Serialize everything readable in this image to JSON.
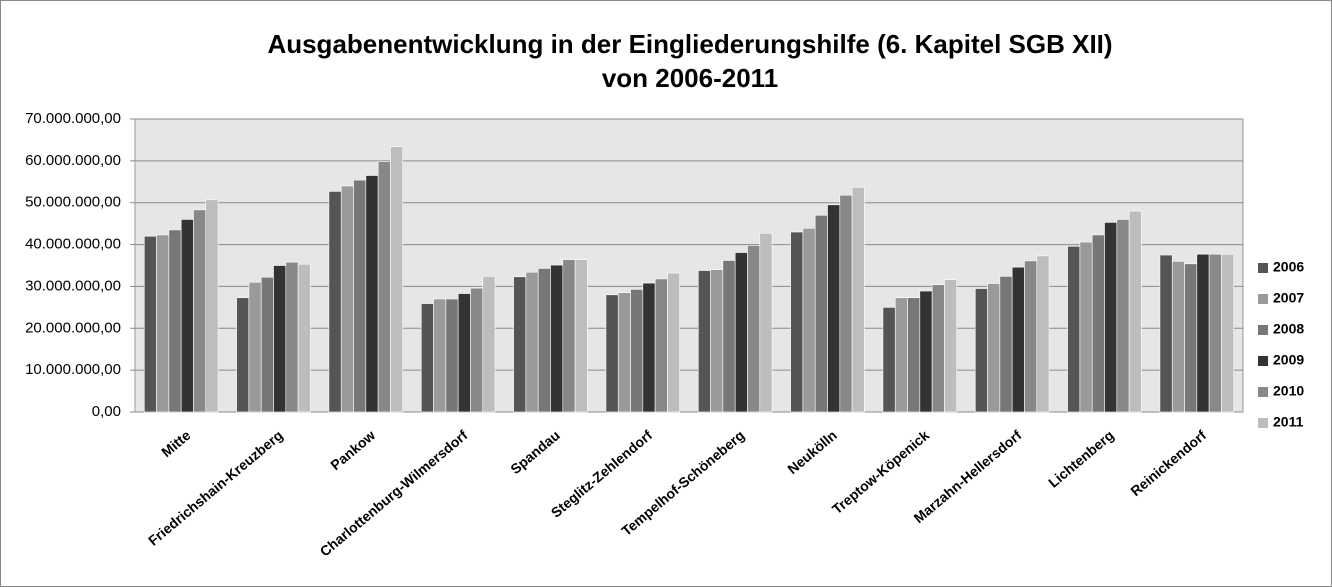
{
  "chart_data": {
    "type": "bar",
    "title": [
      "Ausgabenentwicklung in der Eingliederungshilfe (6. Kapitel SGB XII)",
      "von 2006-2011"
    ],
    "categories": [
      "Mitte",
      "Friedrichshain-Kreuzberg",
      "Pankow",
      "Charlottenburg-Wilmersdorf",
      "Spandau",
      "Steglitz-Zehlendorf",
      "Tempelhof-Schöneberg",
      "Neukölln",
      "Treptow-Köpenick",
      "Marzahn-Hellersdorf",
      "Lichtenberg",
      "Reinickendorf"
    ],
    "series": [
      {
        "name": "2006",
        "color": "#555555",
        "values": [
          42000000,
          27300000,
          52700000,
          25900000,
          32300000,
          28000000,
          33800000,
          43000000,
          25000000,
          29500000,
          39600000,
          37500000
        ]
      },
      {
        "name": "2007",
        "color": "#9a9a9a",
        "values": [
          42300000,
          31000000,
          54000000,
          27000000,
          33400000,
          28500000,
          34000000,
          43900000,
          27300000,
          30700000,
          40600000,
          36000000
        ]
      },
      {
        "name": "2008",
        "color": "#777777",
        "values": [
          43500000,
          32200000,
          55400000,
          27000000,
          34300000,
          29300000,
          36200000,
          47000000,
          27300000,
          32400000,
          42300000,
          35400000
        ]
      },
      {
        "name": "2009",
        "color": "#333333",
        "values": [
          46000000,
          35000000,
          56500000,
          28300000,
          35100000,
          30800000,
          38100000,
          49500000,
          28900000,
          34600000,
          45300000,
          37700000
        ]
      },
      {
        "name": "2010",
        "color": "#888888",
        "values": [
          48300000,
          35800000,
          59800000,
          29600000,
          36400000,
          31800000,
          39800000,
          51800000,
          30400000,
          36100000,
          46000000,
          37700000
        ]
      },
      {
        "name": "2011",
        "color": "#bdbdbd",
        "values": [
          50700000,
          35300000,
          63400000,
          32400000,
          36400000,
          33200000,
          42700000,
          53700000,
          31600000,
          37300000,
          48000000,
          37700000
        ]
      }
    ],
    "ylim": [
      0,
      70000000
    ],
    "yticks": [
      {
        "value": 0,
        "label": "0,00"
      },
      {
        "value": 10000000,
        "label": "10.000.000,00"
      },
      {
        "value": 20000000,
        "label": "20.000.000,00"
      },
      {
        "value": 30000000,
        "label": "30.000.000,00"
      },
      {
        "value": 40000000,
        "label": "40.000.000,00"
      },
      {
        "value": 50000000,
        "label": "50.000.000,00"
      },
      {
        "value": 60000000,
        "label": "60.000.000,00"
      },
      {
        "value": 70000000,
        "label": "70.000.000,00"
      }
    ],
    "grid": true,
    "legend": "right"
  }
}
